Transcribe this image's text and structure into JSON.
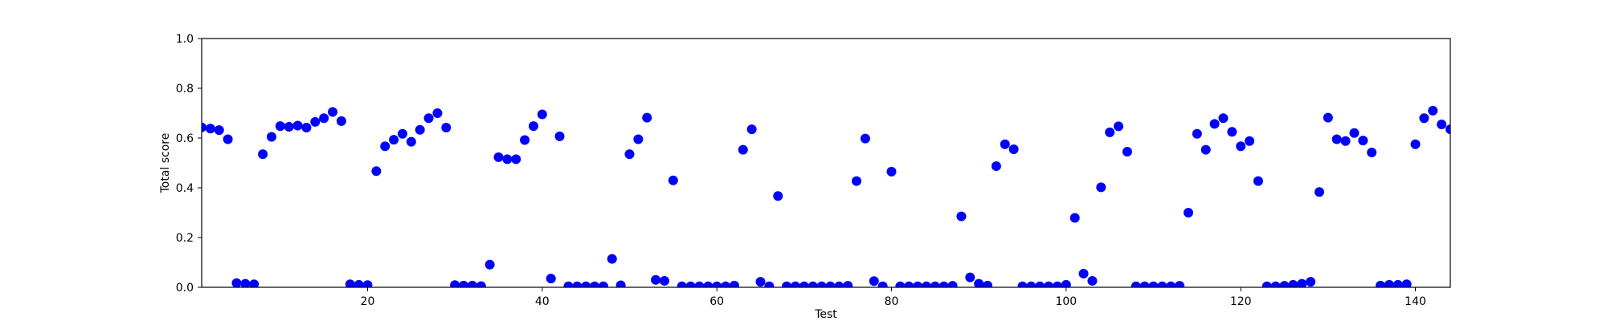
{
  "chart_data": {
    "type": "scatter",
    "xlabel": "Test",
    "ylabel": "Total score",
    "xlim": [
      1,
      144
    ],
    "ylim": [
      0.0,
      1.0
    ],
    "xticks": [
      20,
      40,
      60,
      80,
      100,
      120,
      140
    ],
    "xtick_labels": [
      "20",
      "40",
      "60",
      "80",
      "100",
      "120",
      "140"
    ],
    "yticks": [
      0.0,
      0.2,
      0.4,
      0.6,
      0.8,
      1.0
    ],
    "ytick_labels": [
      "0.0",
      "0.2",
      "0.4",
      "0.6",
      "0.8",
      "1.0"
    ],
    "grid": false,
    "marker_color": "#0000ff",
    "x": [
      1,
      2,
      3,
      4,
      5,
      6,
      7,
      8,
      9,
      10,
      11,
      12,
      13,
      14,
      15,
      16,
      17,
      18,
      19,
      20,
      21,
      22,
      23,
      24,
      25,
      26,
      27,
      28,
      29,
      30,
      31,
      32,
      33,
      34,
      35,
      36,
      37,
      38,
      39,
      40,
      41,
      42,
      43,
      44,
      45,
      46,
      47,
      48,
      49,
      50,
      51,
      52,
      53,
      54,
      55,
      56,
      57,
      58,
      59,
      60,
      61,
      62,
      63,
      64,
      65,
      66,
      67,
      68,
      69,
      70,
      71,
      72,
      73,
      74,
      75,
      76,
      77,
      78,
      79,
      80,
      81,
      82,
      83,
      84,
      85,
      86,
      87,
      88,
      89,
      90,
      91,
      92,
      93,
      94,
      95,
      96,
      97,
      98,
      99,
      100,
      101,
      102,
      103,
      104,
      105,
      106,
      107,
      108,
      109,
      110,
      111,
      112,
      113,
      114,
      115,
      116,
      117,
      118,
      119,
      120,
      121,
      122,
      123,
      124,
      125,
      126,
      127,
      128,
      129,
      130,
      131,
      132,
      133,
      134,
      135,
      136,
      137,
      138,
      139,
      140,
      141,
      142,
      143,
      144
    ],
    "y": [
      0.643,
      0.638,
      0.632,
      0.595,
      0.017,
      0.014,
      0.012,
      0.535,
      0.605,
      0.648,
      0.645,
      0.65,
      0.642,
      0.665,
      0.68,
      0.705,
      0.668,
      0.012,
      0.01,
      0.009,
      0.467,
      0.567,
      0.593,
      0.617,
      0.585,
      0.633,
      0.68,
      0.7,
      0.642,
      0.009,
      0.007,
      0.007,
      0.005,
      0.091,
      0.523,
      0.515,
      0.515,
      0.592,
      0.648,
      0.695,
      0.035,
      0.607,
      0.004,
      0.004,
      0.004,
      0.004,
      0.004,
      0.114,
      0.008,
      0.535,
      0.595,
      0.682,
      0.03,
      0.026,
      0.43,
      0.004,
      0.004,
      0.004,
      0.004,
      0.004,
      0.004,
      0.007,
      0.553,
      0.635,
      0.022,
      0.004,
      0.367,
      0.004,
      0.004,
      0.004,
      0.004,
      0.004,
      0.004,
      0.004,
      0.006,
      0.427,
      0.598,
      0.025,
      0.004,
      0.465,
      0.004,
      0.004,
      0.004,
      0.004,
      0.004,
      0.004,
      0.006,
      0.285,
      0.04,
      0.014,
      0.007,
      0.487,
      0.575,
      0.555,
      0.004,
      0.004,
      0.004,
      0.004,
      0.004,
      0.01,
      0.279,
      0.055,
      0.026,
      0.402,
      0.623,
      0.647,
      0.545,
      0.004,
      0.004,
      0.004,
      0.004,
      0.004,
      0.006,
      0.3,
      0.617,
      0.553,
      0.657,
      0.68,
      0.625,
      0.567,
      0.588,
      0.427,
      0.004,
      0.004,
      0.006,
      0.01,
      0.014,
      0.022,
      0.383,
      0.682,
      0.595,
      0.588,
      0.62,
      0.59,
      0.542,
      0.007,
      0.01,
      0.01,
      0.012,
      0.575,
      0.68,
      0.71,
      0.655,
      0.635
    ]
  }
}
